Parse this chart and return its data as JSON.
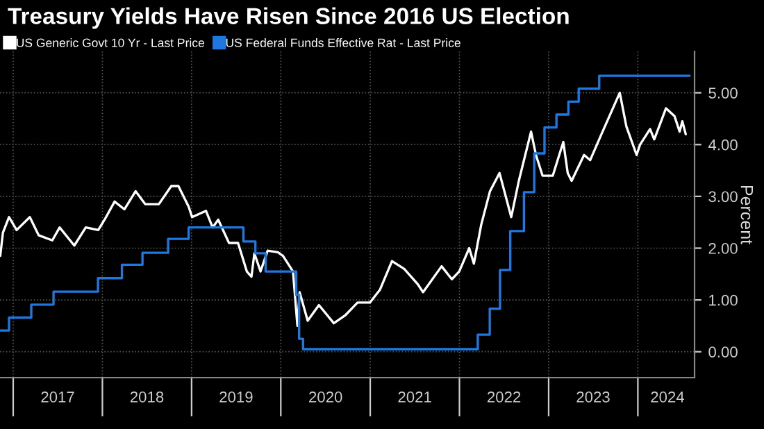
{
  "chart_data": {
    "type": "line",
    "title": "Treasury Yields Have Risen Since 2016 US Election",
    "ylabel": "Percent",
    "x": [
      "2016-11-09",
      "2016-11-20",
      "2016-12-15",
      "2017-01-15",
      "2017-03-10",
      "2017-04-15",
      "2017-06-10",
      "2017-07-10",
      "2017-09-08",
      "2017-10-25",
      "2017-12-15",
      "2018-01-10",
      "2018-02-20",
      "2018-04-01",
      "2018-05-17",
      "2018-06-25",
      "2018-08-20",
      "2018-10-10",
      "2018-11-08",
      "2018-12-20",
      "2019-01-03",
      "2019-03-01",
      "2019-03-28",
      "2019-04-20",
      "2019-06-03",
      "2019-07-10",
      "2019-08-15",
      "2019-09-03",
      "2019-09-15",
      "2019-10-10",
      "2019-11-08",
      "2019-12-20",
      "2020-01-10",
      "2020-02-20",
      "2020-03-09",
      "2020-03-18",
      "2020-04-20",
      "2020-06-05",
      "2020-08-05",
      "2020-09-20",
      "2020-11-10",
      "2020-12-31",
      "2021-02-10",
      "2021-03-31",
      "2021-05-20",
      "2021-07-15",
      "2021-08-05",
      "2021-10-20",
      "2021-12-01",
      "2021-12-31",
      "2022-02-10",
      "2022-03-01",
      "2022-03-31",
      "2022-05-06",
      "2022-06-14",
      "2022-08-01",
      "2022-09-01",
      "2022-10-21",
      "2022-11-10",
      "2022-12-07",
      "2023-01-18",
      "2023-03-02",
      "2023-03-20",
      "2023-04-05",
      "2023-05-26",
      "2023-06-20",
      "2023-08-05",
      "2023-10-19",
      "2023-11-15",
      "2023-12-27",
      "2024-01-10",
      "2024-02-20",
      "2024-03-08",
      "2024-04-25",
      "2024-05-30",
      "2024-06-20",
      "2024-07-01",
      "2024-07-15"
    ],
    "series": [
      {
        "name": "US Generic Govt 10 Yr - Last Price",
        "color": "#ffffff",
        "values": [
          1.85,
          2.3,
          2.6,
          2.35,
          2.6,
          2.25,
          2.15,
          2.4,
          2.05,
          2.4,
          2.35,
          2.55,
          2.9,
          2.75,
          3.1,
          2.85,
          2.85,
          3.2,
          3.2,
          2.8,
          2.6,
          2.72,
          2.4,
          2.55,
          2.1,
          2.1,
          1.55,
          1.45,
          1.9,
          1.55,
          1.95,
          1.92,
          1.85,
          1.55,
          0.5,
          1.15,
          0.6,
          0.9,
          0.55,
          0.7,
          0.95,
          0.95,
          1.2,
          1.75,
          1.6,
          1.3,
          1.15,
          1.65,
          1.4,
          1.55,
          2.0,
          1.7,
          2.45,
          3.1,
          3.45,
          2.6,
          3.3,
          4.25,
          3.8,
          3.4,
          3.4,
          4.05,
          3.45,
          3.3,
          3.8,
          3.7,
          4.2,
          5.0,
          4.35,
          3.8,
          4.0,
          4.3,
          4.1,
          4.7,
          4.55,
          4.25,
          4.45,
          4.2
        ]
      },
      {
        "name": "US Federal Funds Effective Rat - Last Price",
        "color": "#1f78e0",
        "type": "step",
        "x": [
          "2016-11-08",
          "2016-12-15",
          "2017-03-16",
          "2017-06-15",
          "2017-12-14",
          "2018-03-22",
          "2018-06-14",
          "2018-09-27",
          "2018-12-20",
          "2019-08-01",
          "2019-09-19",
          "2019-10-31",
          "2020-03-04",
          "2020-03-16",
          "2020-04-01",
          "2022-03-17",
          "2022-05-05",
          "2022-06-16",
          "2022-07-28",
          "2022-09-22",
          "2022-11-03",
          "2022-12-15",
          "2023-02-02",
          "2023-03-23",
          "2023-05-04",
          "2023-07-27",
          "2024-07-31"
        ],
        "values": [
          0.41,
          0.66,
          0.91,
          1.16,
          1.42,
          1.68,
          1.91,
          2.18,
          2.4,
          2.13,
          1.9,
          1.55,
          1.1,
          0.25,
          0.05,
          0.33,
          0.83,
          1.58,
          2.33,
          3.08,
          3.83,
          4.33,
          4.58,
          4.83,
          5.08,
          5.33,
          5.33
        ]
      }
    ],
    "xlim": [
      "2016-11-08",
      "2024-08-20"
    ],
    "xticks": [
      {
        "value": "2017-01-01",
        "label": null
      },
      {
        "value": "2017-07-02",
        "label": "2017"
      },
      {
        "value": "2018-01-01",
        "label": null
      },
      {
        "value": "2018-07-02",
        "label": "2018"
      },
      {
        "value": "2019-01-01",
        "label": null
      },
      {
        "value": "2019-07-02",
        "label": "2019"
      },
      {
        "value": "2020-01-01",
        "label": null
      },
      {
        "value": "2020-07-02",
        "label": "2020"
      },
      {
        "value": "2021-01-01",
        "label": null
      },
      {
        "value": "2021-07-02",
        "label": "2021"
      },
      {
        "value": "2022-01-01",
        "label": null
      },
      {
        "value": "2022-07-02",
        "label": "2022"
      },
      {
        "value": "2023-01-01",
        "label": null
      },
      {
        "value": "2023-07-02",
        "label": "2023"
      },
      {
        "value": "2024-01-01",
        "label": null
      },
      {
        "value": "2024-05-01",
        "label": "2024"
      }
    ],
    "ylim": [
      -0.5,
      5.8
    ],
    "yticks": [
      {
        "value": 0,
        "label": "0.00"
      },
      {
        "value": 1,
        "label": "1.00"
      },
      {
        "value": 2,
        "label": "2.00"
      },
      {
        "value": 3,
        "label": "3.00"
      },
      {
        "value": 4,
        "label": "4.00"
      },
      {
        "value": 5,
        "label": "5.00"
      }
    ],
    "grid": true,
    "legend": "top left"
  }
}
